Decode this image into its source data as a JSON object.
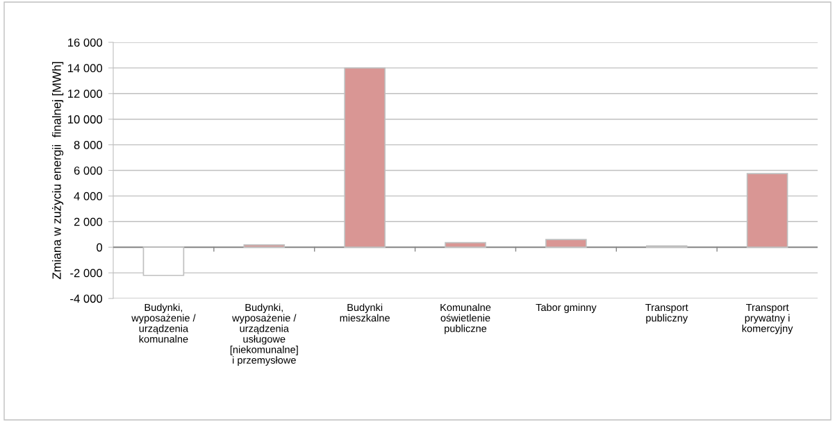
{
  "chart_data": {
    "type": "bar",
    "ylabel": "Zmiana w zużyciu energii  finalnej [MWh]",
    "categories": [
      "Budynki, wyposażenie / urządzenia komunalne",
      "Budynki, wyposażenie / urządzenia usługowe [niekomunalne] i przemysłowe",
      "Budynki mieszkalne",
      "Komunalne oświetlenie publiczne",
      "Tabor gminny",
      "Transport publiczny",
      "Transport prywatny i komercyjny"
    ],
    "values": [
      -2200,
      180,
      14000,
      360,
      600,
      100,
      5750
    ],
    "colors": [
      "#ffffff",
      "#d99694",
      "#d99694",
      "#d99694",
      "#d99694",
      "#d99694",
      "#d99694"
    ],
    "ylim": [
      -4000,
      16000
    ],
    "yticks": [
      {
        "value": -4000,
        "label": "-4 000"
      },
      {
        "value": -2000,
        "label": "-2 000"
      },
      0,
      {
        "value": 2000,
        "label": "2 000"
      },
      {
        "value": 4000,
        "label": "4 000"
      },
      {
        "value": 6000,
        "label": "6 000"
      },
      {
        "value": 8000,
        "label": "8 000"
      },
      {
        "value": 10000,
        "label": "10 000"
      },
      {
        "value": 12000,
        "label": "12 000"
      },
      {
        "value": 14000,
        "label": "14 000"
      },
      {
        "value": 16000,
        "label": "16 000"
      }
    ],
    "grid": "y"
  }
}
